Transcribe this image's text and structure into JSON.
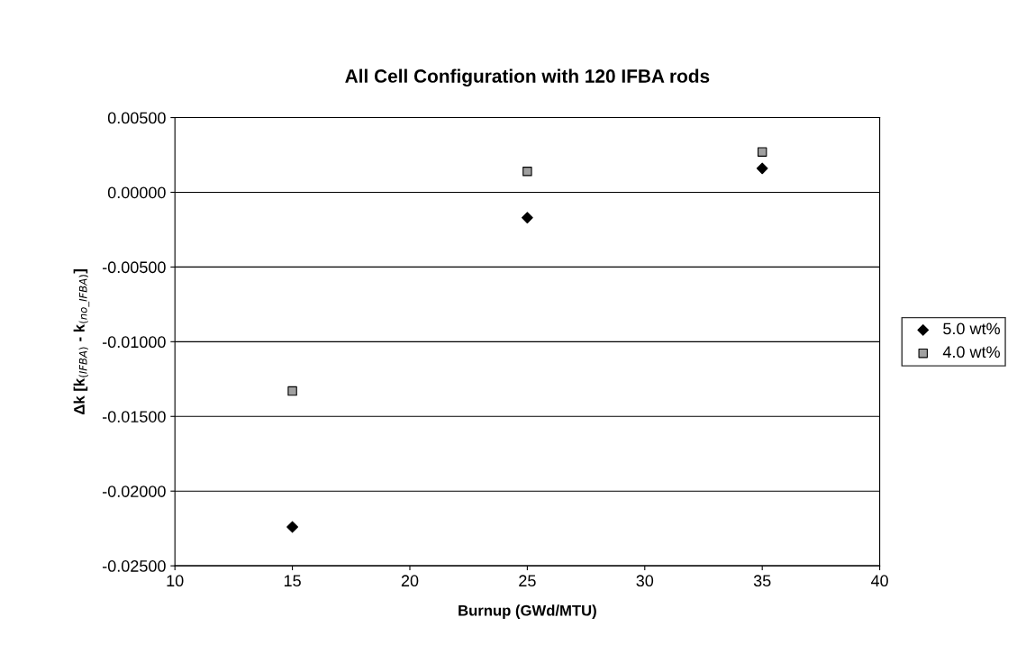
{
  "chart_data": {
    "type": "scatter",
    "title": "All Cell Configuration with 120 IFBA rods",
    "xlabel": "Burnup (GWd/MTU)",
    "ylabel": "Δk [k$_{(IFBA)}$ - k$_{(no_IFBA)}$]",
    "x": [
      15,
      25,
      35
    ],
    "series": [
      {
        "name": "5.0 wt%",
        "color": "#000000",
        "marker": "diamond",
        "values": [
          -0.0224,
          -0.0017,
          0.0016
        ]
      },
      {
        "name": "4.0 wt%",
        "color": "#a0a0a0",
        "marker": "square",
        "values": [
          -0.0133,
          0.0014,
          0.0027
        ]
      }
    ],
    "xlim": [
      10,
      40
    ],
    "xticks": [
      10,
      15,
      20,
      25,
      30,
      35,
      40
    ],
    "ylim": [
      -0.025,
      0.005
    ],
    "yticks": [
      {
        "value": -0.025,
        "label": "-0.02500"
      },
      {
        "value": -0.02,
        "label": "-0.02000"
      },
      {
        "value": -0.015,
        "label": "-0.01500"
      },
      {
        "value": -0.01,
        "label": "-0.01000"
      },
      {
        "value": -0.005,
        "label": "-0.00500"
      },
      {
        "value": 0,
        "label": "0.00000"
      },
      {
        "value": 0.005,
        "label": "0.00500"
      }
    ],
    "grid": "y",
    "legend": "right"
  }
}
